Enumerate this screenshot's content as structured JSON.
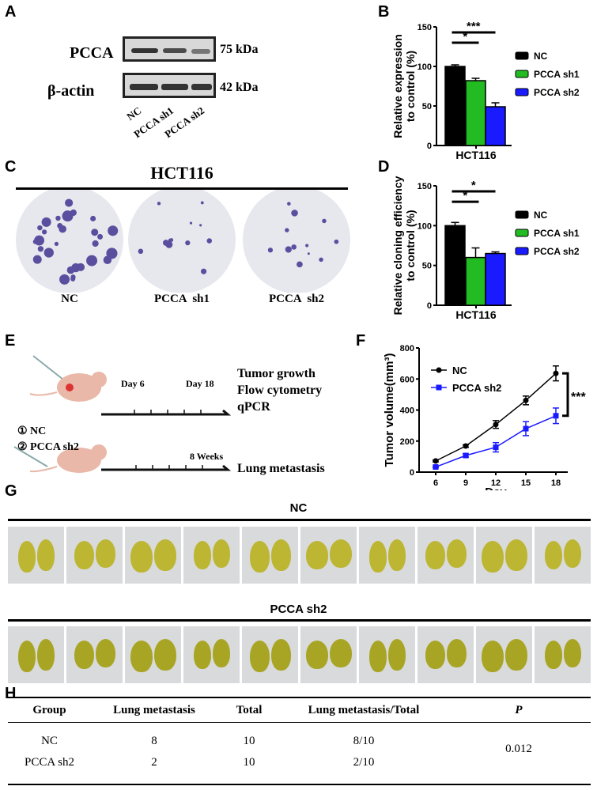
{
  "panels": {
    "a": "A",
    "b": "B",
    "c": "C",
    "d": "D",
    "e": "E",
    "f": "F",
    "g": "G",
    "h": "H"
  },
  "western": {
    "proteins": [
      "PCCA",
      "β-actin"
    ],
    "sizes": [
      "75 kDa",
      "42 kDa"
    ],
    "lanes": [
      "NC",
      "PCCA sh1",
      "PCCA sh2"
    ]
  },
  "colony": {
    "title": "HCT116",
    "labels": [
      "NC",
      "PCCA  sh1",
      "PCCA  sh2"
    ]
  },
  "schematic": {
    "groups": [
      "① NC",
      "② PCCA sh2"
    ],
    "timeline1": [
      "Day 6",
      "Day 18"
    ],
    "timeline2": "8 Weeks",
    "outcomes": [
      "Tumor growth",
      "Flow cytometry",
      "qPCR"
    ],
    "outcome2": "Lung metastasis"
  },
  "lungs": {
    "row1_title": "NC",
    "row2_title": "PCCA sh2"
  },
  "table": {
    "headers": [
      "Group",
      "Lung metastasis",
      "Total",
      "Lung metastasis/Total",
      "P"
    ],
    "rows": [
      [
        "NC",
        "8",
        "10",
        "8/10"
      ],
      [
        "PCCA sh2",
        "2",
        "10",
        "2/10"
      ]
    ],
    "p_value": "0.012"
  },
  "chart_data": [
    {
      "type": "bar",
      "panel": "B",
      "categories": [
        "HCT116"
      ],
      "ylabel": "Relative expression to control (%)",
      "xlabel": "HCT116",
      "ylim": [
        0,
        150
      ],
      "yticks": [
        0,
        50,
        100,
        150
      ],
      "legend": "right",
      "series": [
        {
          "name": "NC",
          "values": [
            100
          ],
          "error": [
            2
          ],
          "color": "#000000"
        },
        {
          "name": "PCCA sh1",
          "values": [
            82
          ],
          "error": [
            3
          ],
          "color": "#22bb22"
        },
        {
          "name": "PCCA sh2",
          "values": [
            49
          ],
          "error": [
            5
          ],
          "color": "#1a1aff"
        }
      ],
      "annotations": [
        {
          "text": "*",
          "between": [
            "NC",
            "PCCA sh1"
          ]
        },
        {
          "text": "***",
          "between": [
            "NC",
            "PCCA sh2"
          ]
        }
      ]
    },
    {
      "type": "bar",
      "panel": "D",
      "categories": [
        "HCT116"
      ],
      "ylabel": "Relative cloning efficiency to control (%)",
      "xlabel": "HCT116",
      "ylim": [
        0,
        150
      ],
      "yticks": [
        0,
        50,
        100,
        150
      ],
      "legend": "right",
      "series": [
        {
          "name": "NC",
          "values": [
            100
          ],
          "error": [
            4
          ],
          "color": "#000000"
        },
        {
          "name": "PCCA sh1",
          "values": [
            60
          ],
          "error": [
            12
          ],
          "color": "#22bb22"
        },
        {
          "name": "PCCA sh2",
          "values": [
            65
          ],
          "error": [
            2
          ],
          "color": "#1a1aff"
        }
      ],
      "annotations": [
        {
          "text": "*",
          "between": [
            "NC",
            "PCCA sh1"
          ]
        },
        {
          "text": "*",
          "between": [
            "NC",
            "PCCA sh2"
          ]
        }
      ]
    },
    {
      "type": "line",
      "panel": "F",
      "x": [
        6,
        9,
        12,
        15,
        18
      ],
      "xlabel": "Day",
      "ylabel": "Tumor volume(mm³)",
      "ylim": [
        0,
        800
      ],
      "yticks": [
        0,
        200,
        400,
        600,
        800
      ],
      "legend": "top-left",
      "series": [
        {
          "name": "NC",
          "values": [
            72,
            168,
            307,
            462,
            636
          ],
          "error": [
            6,
            8,
            25,
            28,
            48
          ],
          "color": "#000000",
          "marker": "circle"
        },
        {
          "name": "PCCA sh2",
          "values": [
            33,
            107,
            160,
            280,
            363
          ],
          "error": [
            5,
            10,
            30,
            45,
            50
          ],
          "color": "#1a1aff",
          "marker": "square"
        }
      ],
      "annotations": [
        {
          "text": "***",
          "between": [
            "NC",
            "PCCA sh2"
          ]
        }
      ]
    }
  ]
}
